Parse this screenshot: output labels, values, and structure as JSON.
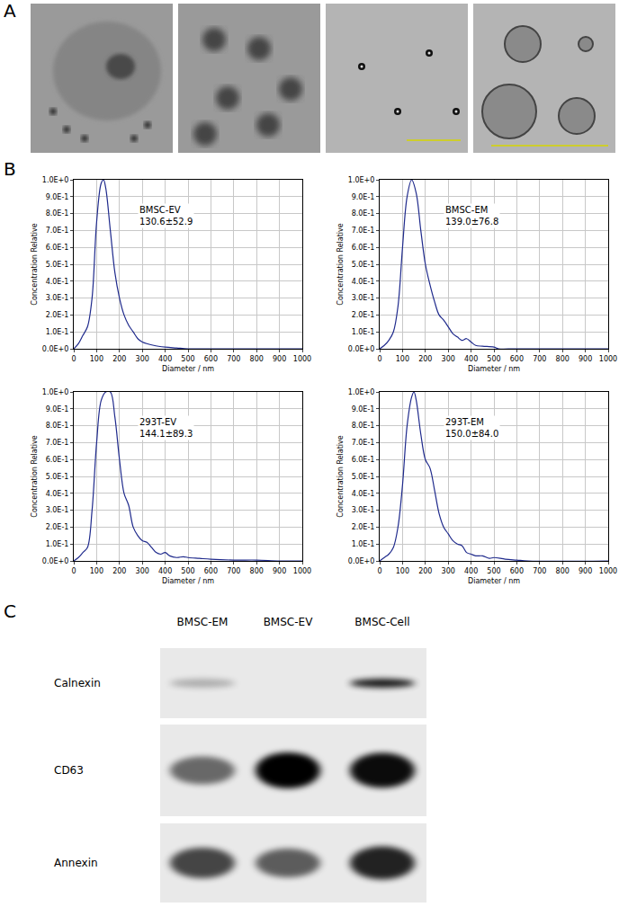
{
  "panel_labels": [
    "A",
    "B",
    "C"
  ],
  "chart_data": [
    {
      "type": "line",
      "name": "BMSC-EV",
      "stats": "130.6±52.9",
      "color": "#1f2a8c",
      "grid": true,
      "xlabel": "Diameter / nm",
      "ylabel": "Concentration Relative",
      "x": [
        0,
        20,
        40,
        60,
        80,
        100,
        120,
        130,
        140,
        160,
        180,
        200,
        220,
        240,
        260,
        280,
        300,
        350,
        400,
        450,
        500,
        600,
        1000
      ],
      "values": [
        0,
        0.03,
        0.08,
        0.13,
        0.3,
        0.75,
        0.98,
        1.0,
        0.95,
        0.7,
        0.45,
        0.3,
        0.2,
        0.14,
        0.1,
        0.06,
        0.04,
        0.02,
        0.01,
        0.005,
        0,
        0,
        0
      ],
      "xlim": [
        0,
        1000
      ],
      "xticks": [
        0,
        100,
        200,
        300,
        400,
        500,
        600,
        700,
        800,
        900,
        1000
      ],
      "ylim": [
        0,
        1
      ],
      "yticks": [
        {
          "value": 0,
          "label": "0.0E+0"
        },
        {
          "value": 0.1,
          "label": "1.0E-1"
        },
        {
          "value": 0.2,
          "label": "2.0E-1"
        },
        {
          "value": 0.3,
          "label": "3.0E-1"
        },
        {
          "value": 0.4,
          "label": "4.0E-1"
        },
        {
          "value": 0.5,
          "label": "5.0E-1"
        },
        {
          "value": 0.6,
          "label": "6.0E-1"
        },
        {
          "value": 0.7,
          "label": "7.0E-1"
        },
        {
          "value": 0.8,
          "label": "8.0E-1"
        },
        {
          "value": 0.9,
          "label": "9.0E-1"
        },
        {
          "value": 1,
          "label": "1.0E+0"
        }
      ]
    },
    {
      "type": "line",
      "name": "BMSC-EM",
      "stats": "139.0±76.8",
      "color": "#1f2a8c",
      "grid": true,
      "xlabel": "Diameter / nm",
      "ylabel": "Concentration Relative",
      "x": [
        0,
        20,
        40,
        60,
        80,
        100,
        120,
        140,
        160,
        180,
        200,
        220,
        240,
        260,
        280,
        300,
        320,
        340,
        360,
        380,
        400,
        420,
        450,
        500,
        520,
        600,
        1000
      ],
      "values": [
        0,
        0.02,
        0.05,
        0.1,
        0.25,
        0.6,
        0.9,
        1.0,
        0.92,
        0.7,
        0.5,
        0.38,
        0.28,
        0.2,
        0.17,
        0.13,
        0.09,
        0.07,
        0.05,
        0.06,
        0.04,
        0.02,
        0.015,
        0.01,
        0,
        0,
        0
      ],
      "xlim": [
        0,
        1000
      ],
      "xticks": [
        0,
        100,
        200,
        300,
        400,
        500,
        600,
        700,
        800,
        900,
        1000
      ],
      "ylim": [
        0,
        1
      ],
      "yticks": [
        {
          "value": 0,
          "label": "0.0E+0"
        },
        {
          "value": 0.1,
          "label": "1.0E-1"
        },
        {
          "value": 0.2,
          "label": "2.0E-1"
        },
        {
          "value": 0.3,
          "label": "3.0E-1"
        },
        {
          "value": 0.4,
          "label": "4.0E-1"
        },
        {
          "value": 0.5,
          "label": "5.0E-1"
        },
        {
          "value": 0.6,
          "label": "6.0E-1"
        },
        {
          "value": 0.7,
          "label": "7.0E-1"
        },
        {
          "value": 0.8,
          "label": "8.0E-1"
        },
        {
          "value": 0.9,
          "label": "9.0E-1"
        },
        {
          "value": 1,
          "label": "1.0E+0"
        }
      ]
    },
    {
      "type": "line",
      "name": "293T-EV",
      "stats": "144.1±89.3",
      "color": "#1f2a8c",
      "grid": true,
      "xlabel": "Diameter / nm",
      "ylabel": "Concentration Relative",
      "x": [
        0,
        20,
        40,
        60,
        80,
        100,
        120,
        140,
        160,
        180,
        200,
        220,
        240,
        260,
        280,
        300,
        320,
        340,
        360,
        380,
        400,
        420,
        450,
        480,
        500,
        550,
        600,
        700,
        800,
        900,
        1000
      ],
      "values": [
        0,
        0.02,
        0.05,
        0.08,
        0.3,
        0.7,
        0.95,
        1.0,
        1.0,
        0.85,
        0.6,
        0.4,
        0.33,
        0.2,
        0.15,
        0.12,
        0.11,
        0.08,
        0.05,
        0.04,
        0.05,
        0.03,
        0.02,
        0.025,
        0.02,
        0.015,
        0.01,
        0.005,
        0.005,
        0,
        0
      ],
      "xlim": [
        0,
        1000
      ],
      "xticks": [
        0,
        100,
        200,
        300,
        400,
        500,
        600,
        700,
        800,
        900,
        1000
      ],
      "ylim": [
        0,
        1
      ],
      "yticks": [
        {
          "value": 0,
          "label": "0.0E+0"
        },
        {
          "value": 0.1,
          "label": "1.0E-1"
        },
        {
          "value": 0.2,
          "label": "2.0E-1"
        },
        {
          "value": 0.3,
          "label": "3.0E-1"
        },
        {
          "value": 0.4,
          "label": "4.0E-1"
        },
        {
          "value": 0.5,
          "label": "5.0E-1"
        },
        {
          "value": 0.6,
          "label": "6.0E-1"
        },
        {
          "value": 0.7,
          "label": "7.0E-1"
        },
        {
          "value": 0.8,
          "label": "8.0E-1"
        },
        {
          "value": 0.9,
          "label": "9.0E-1"
        },
        {
          "value": 1,
          "label": "1.0E+0"
        }
      ]
    },
    {
      "type": "line",
      "name": "293T-EM",
      "stats": "150.0±84.0",
      "color": "#1f2a8c",
      "grid": true,
      "xlabel": "Diameter / nm",
      "ylabel": "Concentration Relative",
      "x": [
        0,
        20,
        40,
        60,
        80,
        100,
        120,
        140,
        150,
        160,
        180,
        200,
        220,
        240,
        260,
        280,
        300,
        320,
        340,
        360,
        380,
        400,
        420,
        450,
        480,
        500,
        550,
        600,
        650,
        1000
      ],
      "values": [
        0,
        0.02,
        0.04,
        0.08,
        0.2,
        0.45,
        0.8,
        0.97,
        1.0,
        0.95,
        0.75,
        0.6,
        0.55,
        0.42,
        0.28,
        0.2,
        0.16,
        0.12,
        0.1,
        0.09,
        0.05,
        0.04,
        0.03,
        0.03,
        0.015,
        0.02,
        0.01,
        0.005,
        0,
        0
      ],
      "xlim": [
        0,
        1000
      ],
      "xticks": [
        0,
        100,
        200,
        300,
        400,
        500,
        600,
        700,
        800,
        900,
        1000
      ],
      "ylim": [
        0,
        1
      ],
      "yticks": [
        {
          "value": 0,
          "label": "0.0E+0"
        },
        {
          "value": 0.1,
          "label": "1.0E-1"
        },
        {
          "value": 0.2,
          "label": "2.0E-1"
        },
        {
          "value": 0.3,
          "label": "3.0E-1"
        },
        {
          "value": 0.4,
          "label": "4.0E-1"
        },
        {
          "value": 0.5,
          "label": "5.0E-1"
        },
        {
          "value": 0.6,
          "label": "6.0E-1"
        },
        {
          "value": 0.7,
          "label": "7.0E-1"
        },
        {
          "value": 0.8,
          "label": "8.0E-1"
        },
        {
          "value": 0.9,
          "label": "9.0E-1"
        },
        {
          "value": 1,
          "label": "1.0E+0"
        }
      ]
    }
  ],
  "blot": {
    "lanes": [
      "BMSC-EM",
      "BMSC-EV",
      "BMSC-Cell"
    ],
    "rows": [
      {
        "label": "Calnexin",
        "intensity": [
          0.25,
          0,
          0.9
        ]
      },
      {
        "label": "CD63",
        "intensity": [
          0.55,
          1,
          0.95
        ]
      },
      {
        "label": "Annexin",
        "intensity": [
          0.7,
          0.6,
          0.85
        ]
      }
    ]
  }
}
